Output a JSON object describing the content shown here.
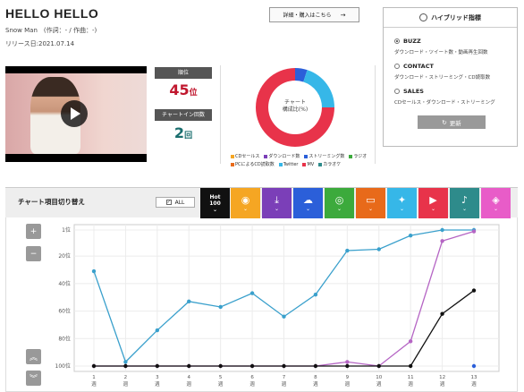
{
  "song": {
    "title": "HELLO HELLO",
    "artist_line": "Snow Man　(作詞：- / 作曲：-)",
    "release": "リリース日:2021.07.14"
  },
  "buy_button": {
    "label": "詳細・購入はこちら",
    "arrow": "→"
  },
  "stats": {
    "rank_label": "順位",
    "rank_value": "45",
    "rank_unit": "位",
    "chartin_label": "チャートイン回数",
    "chartin_value": "2",
    "chartin_unit": "回"
  },
  "donut": {
    "center_line1": "チャート",
    "center_line2": "構成比(%)",
    "segments": [
      {
        "name": "ストリーミング数",
        "value": 5,
        "color": "#2b5fd9"
      },
      {
        "name": "Twitter",
        "value": 20,
        "color": "#36b7e8"
      },
      {
        "name": "MV",
        "value": 75,
        "color": "#e8334a"
      }
    ]
  },
  "legend": [
    {
      "name": "CDセールス",
      "color": "#f5a623"
    },
    {
      "name": "ダウンロード数",
      "color": "#7b3fb8"
    },
    {
      "name": "ストリーミング数",
      "color": "#2b5fd9"
    },
    {
      "name": "ラジオ",
      "color": "#3caa3c"
    },
    {
      "name": "PCによるCD読取数",
      "color": "#e86a1a"
    },
    {
      "name": "Twitter",
      "color": "#36b7e8"
    },
    {
      "name": "MV",
      "color": "#e8334a"
    },
    {
      "name": "カラオケ",
      "color": "#2e8b8b"
    }
  ],
  "hybrid": {
    "title": "ハイブリッド指標",
    "options": [
      {
        "label": "BUZZ",
        "desc": "ダウンロード・ツイート数・動画再生回数",
        "selected": true
      },
      {
        "label": "CONTACT",
        "desc": "ダウンロード・ストリーミング・CD読取数",
        "selected": false
      },
      {
        "label": "SALES",
        "desc": "CDセールス・ダウンロード・ストリーミング",
        "selected": false
      }
    ],
    "update_label": "更新",
    "update_icon": "↻"
  },
  "chart_bar": {
    "title": "チャート項目切り替え",
    "all_label": "ALL",
    "all_check": "✓",
    "hot_label_1": "Hot",
    "hot_label_2": "100",
    "chevron": "⌄",
    "categories": [
      {
        "icon": "◉",
        "color": "#f5a623",
        "name": "cd-sales"
      },
      {
        "icon": "⤓",
        "color": "#7b3fb8",
        "name": "download"
      },
      {
        "icon": "☁",
        "color": "#2b5fd9",
        "name": "streaming"
      },
      {
        "icon": "◎",
        "color": "#3caa3c",
        "name": "radio"
      },
      {
        "icon": "▭",
        "color": "#e86a1a",
        "name": "pc-cd-read"
      },
      {
        "icon": "✦",
        "color": "#36b7e8",
        "name": "twitter"
      },
      {
        "icon": "▶",
        "color": "#e8334a",
        "name": "mv"
      },
      {
        "icon": "♪",
        "color": "#2e8b8b",
        "name": "karaoke"
      },
      {
        "icon": "◈",
        "color": "#e85cc8",
        "name": "other"
      }
    ]
  },
  "side_buttons": {
    "zoom_in": "+",
    "zoom_out": "−",
    "scroll_up": "︽",
    "scroll_down": "︾"
  },
  "chart_data": {
    "type": "line",
    "x": [
      1,
      2,
      3,
      4,
      5,
      6,
      7,
      8,
      9,
      10,
      11,
      12,
      13
    ],
    "x_tick_suffix": "週",
    "y_ticks": [
      "1位",
      "20位",
      "40位",
      "60位",
      "80位",
      "100位"
    ],
    "y_tick_values": [
      1,
      20,
      40,
      60,
      80,
      100
    ],
    "ylim": [
      1,
      100
    ],
    "y_reversed": true,
    "grid": true,
    "series": [
      {
        "color": "#3aa0cc",
        "values": [
          31,
          97,
          74,
          53,
          57,
          47,
          64,
          48,
          16,
          15,
          5,
          1,
          1
        ]
      },
      {
        "color": "#b565c4",
        "values": [
          100,
          100,
          100,
          100,
          100,
          100,
          100,
          100,
          97,
          100,
          82,
          9,
          2
        ]
      },
      {
        "color": "#111111",
        "values": [
          100,
          100,
          100,
          100,
          100,
          100,
          100,
          100,
          100,
          100,
          100,
          62,
          45
        ]
      },
      {
        "color": "#2b5fd9",
        "values": [
          null,
          null,
          null,
          null,
          null,
          null,
          null,
          null,
          null,
          null,
          null,
          null,
          100
        ]
      }
    ]
  }
}
